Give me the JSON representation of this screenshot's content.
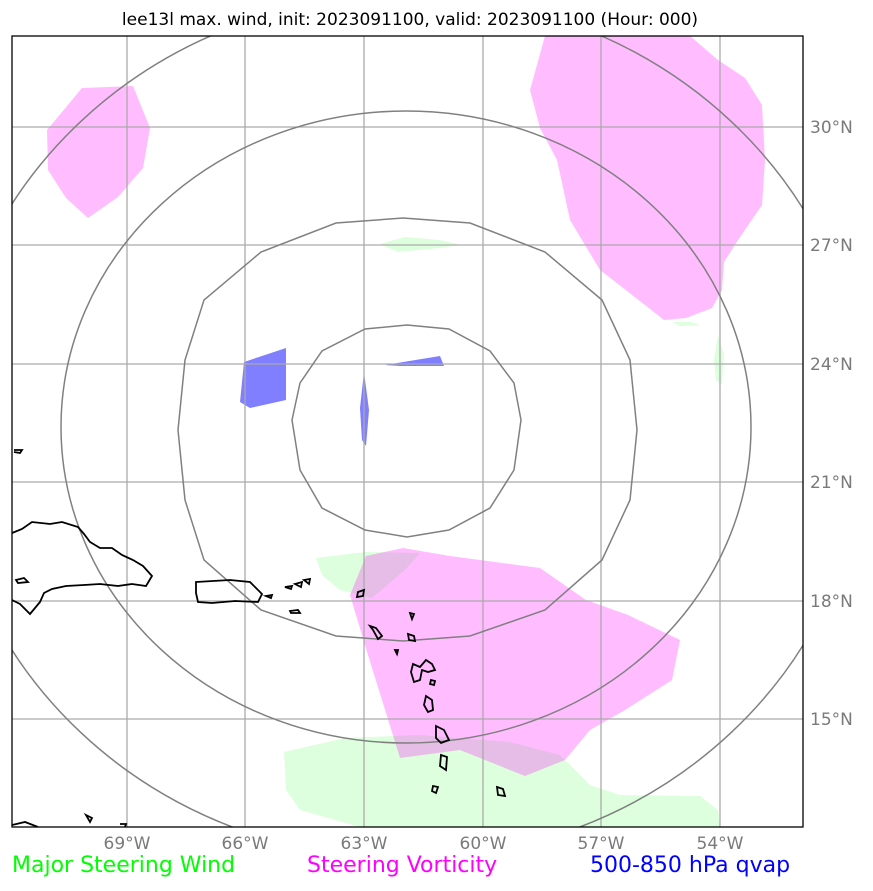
{
  "title": "lee13l max. wind, init: 2023091100, valid: 2023091100 (Hour: 000)",
  "lat_labels": [
    "30°N",
    "27°N",
    "24°N",
    "21°N",
    "18°N",
    "15°N"
  ],
  "lon_labels": [
    "69°W",
    "66°W",
    "63°W",
    "60°W",
    "57°W",
    "54°W"
  ],
  "legend": {
    "wind": "Major Steering Wind",
    "vorticity": "Steering Vorticity",
    "qvap": "500-850 hPa qvap"
  },
  "colors": {
    "wind": "#00ff00",
    "vorticity": "#ff00ff",
    "qvap": "#0000ff",
    "wind_fill": "#ddffdd",
    "vorticity_fill": "#ffbfff",
    "qvap_fill": "#7f7fff",
    "grid": "#aaaaaa",
    "rings": "#808080"
  }
}
